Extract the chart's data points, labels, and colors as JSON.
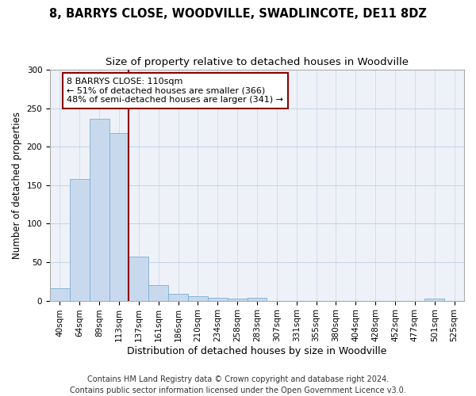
{
  "title1": "8, BARRYS CLOSE, WOODVILLE, SWADLINCOTE, DE11 8DZ",
  "title2": "Size of property relative to detached houses in Woodville",
  "xlabel": "Distribution of detached houses by size in Woodville",
  "ylabel": "Number of detached properties",
  "categories": [
    "40sqm",
    "64sqm",
    "89sqm",
    "113sqm",
    "137sqm",
    "161sqm",
    "186sqm",
    "210sqm",
    "234sqm",
    "258sqm",
    "283sqm",
    "307sqm",
    "331sqm",
    "355sqm",
    "380sqm",
    "404sqm",
    "428sqm",
    "452sqm",
    "477sqm",
    "501sqm",
    "525sqm"
  ],
  "values": [
    16,
    158,
    236,
    218,
    57,
    20,
    9,
    6,
    4,
    3,
    4,
    0,
    0,
    0,
    0,
    0,
    0,
    0,
    0,
    3,
    0
  ],
  "bar_color": "#c8d9ee",
  "bar_edge_color": "#7aafd4",
  "grid_color": "#c8d4e8",
  "bg_color": "#eef2f8",
  "vline_x": 3.5,
  "vline_color": "#8b0000",
  "annotation_text": "8 BARRYS CLOSE: 110sqm\n← 51% of detached houses are smaller (366)\n48% of semi-detached houses are larger (341) →",
  "annotation_box_color": "white",
  "annotation_box_edge": "#8b0000",
  "ylim": [
    0,
    300
  ],
  "yticks": [
    0,
    50,
    100,
    150,
    200,
    250,
    300
  ],
  "footer": "Contains HM Land Registry data © Crown copyright and database right 2024.\nContains public sector information licensed under the Open Government Licence v3.0.",
  "footer_fontsize": 7.0,
  "title1_fontsize": 10.5,
  "title2_fontsize": 9.5,
  "xlabel_fontsize": 9.0,
  "ylabel_fontsize": 8.5,
  "tick_fontsize": 7.5,
  "annot_fontsize": 8.0
}
